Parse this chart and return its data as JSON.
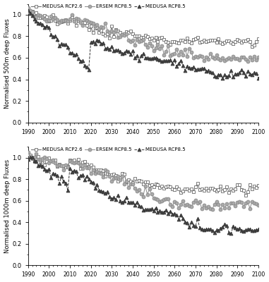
{
  "ylabel_top": "Normalised 500m deep Fluxes",
  "ylabel_bottom": "Normalised 1000m deep Fluxes",
  "xmin": 1990,
  "xmax": 2100,
  "ymin": 0,
  "ymax": 1.1,
  "legend_labels": [
    "MEDUSA RCP2.6",
    "ERSEM RCP8.5",
    "MEDUSA RCP8.5"
  ],
  "background_color": "#ffffff",
  "xticks": [
    1990,
    2000,
    2010,
    2020,
    2030,
    2040,
    2050,
    2060,
    2070,
    2080,
    2090,
    2100
  ],
  "yticks": [
    0,
    0.2,
    0.4,
    0.6,
    0.8,
    1.0
  ],
  "color_rcp26": "#666666",
  "color_ersem": "#888888",
  "color_rcp85": "#333333"
}
